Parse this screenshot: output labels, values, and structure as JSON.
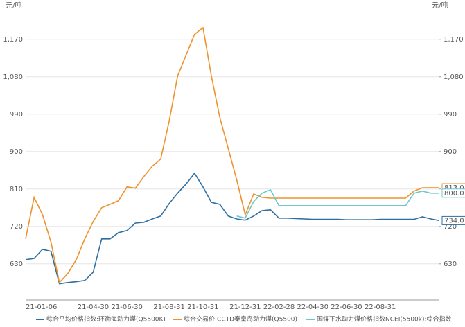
{
  "chart_data": {
    "type": "line",
    "y_unit": "元/吨",
    "y2_unit": "元/吨",
    "categories": [
      "21-01-06",
      null,
      null,
      null,
      null,
      null,
      null,
      null,
      "21-04-30",
      null,
      null,
      null,
      "21-06-30",
      null,
      null,
      null,
      null,
      "21-08-31",
      null,
      null,
      null,
      "21-10-31",
      null,
      null,
      null,
      null,
      "21-12-31",
      null,
      null,
      null,
      "22-02-28",
      null,
      null,
      null,
      "22-04-30",
      null,
      null,
      null,
      "22-06-30",
      null,
      null,
      null,
      "22-08-31",
      null,
      null,
      null,
      null,
      null,
      null,
      null
    ],
    "series": [
      {
        "name": "综合平均价格指数:环渤海动力煤(Q5500K)",
        "color": "#2f6fa0",
        "values": [
          640,
          643,
          665,
          660,
          582,
          585,
          587,
          590,
          610,
          690,
          690,
          705,
          710,
          728,
          730,
          738,
          745,
          775,
          800,
          822,
          848,
          815,
          778,
          773,
          745,
          738,
          735,
          745,
          758,
          760,
          740,
          740,
          739,
          738,
          737,
          737,
          737,
          737,
          736,
          736,
          736,
          736,
          737,
          737,
          737,
          737,
          737,
          743,
          738,
          734
        ],
        "last_label": "734.0"
      },
      {
        "name": "综合交易价:CCTD秦皇岛动力煤(Q5500)",
        "color": "#f0922c",
        "values": [
          690,
          790,
          748,
          682,
          585,
          607,
          640,
          690,
          732,
          765,
          773,
          782,
          815,
          812,
          840,
          865,
          882,
          973,
          1082,
          1132,
          1182,
          1198,
          1082,
          982,
          907,
          832,
          748,
          798,
          790,
          788,
          788,
          788,
          788,
          788,
          788,
          788,
          788,
          788,
          788,
          788,
          788,
          788,
          788,
          788,
          788,
          788,
          805,
          813,
          813,
          813
        ],
        "last_label": "813.0"
      },
      {
        "name": "国煤下水动力煤价格指数NCEI(5500k):综合指数",
        "color": "#6cc7cc",
        "values": [
          null,
          null,
          null,
          null,
          null,
          null,
          null,
          null,
          null,
          null,
          null,
          null,
          null,
          null,
          null,
          null,
          null,
          null,
          null,
          null,
          null,
          null,
          null,
          null,
          null,
          745,
          740,
          780,
          800,
          808,
          770,
          770,
          770,
          770,
          770,
          770,
          770,
          770,
          770,
          770,
          770,
          770,
          770,
          770,
          770,
          770,
          800,
          805,
          800,
          800
        ],
        "last_label": "800.0"
      }
    ],
    "ylim": [
      543,
      1248
    ],
    "yticks": [
      630,
      720,
      810,
      900,
      {
        "value": 990,
        "label": "990"
      },
      {
        "value": 1080,
        "label": "1,080"
      },
      {
        "value": 1170,
        "label": "1,170"
      }
    ],
    "y2lim": [
      543,
      1248
    ],
    "y2ticks": [
      630,
      720,
      810,
      900,
      990,
      {
        "value": 1080,
        "label": "1,080"
      },
      {
        "value": 1170,
        "label": "1,170"
      }
    ],
    "grid": true
  }
}
